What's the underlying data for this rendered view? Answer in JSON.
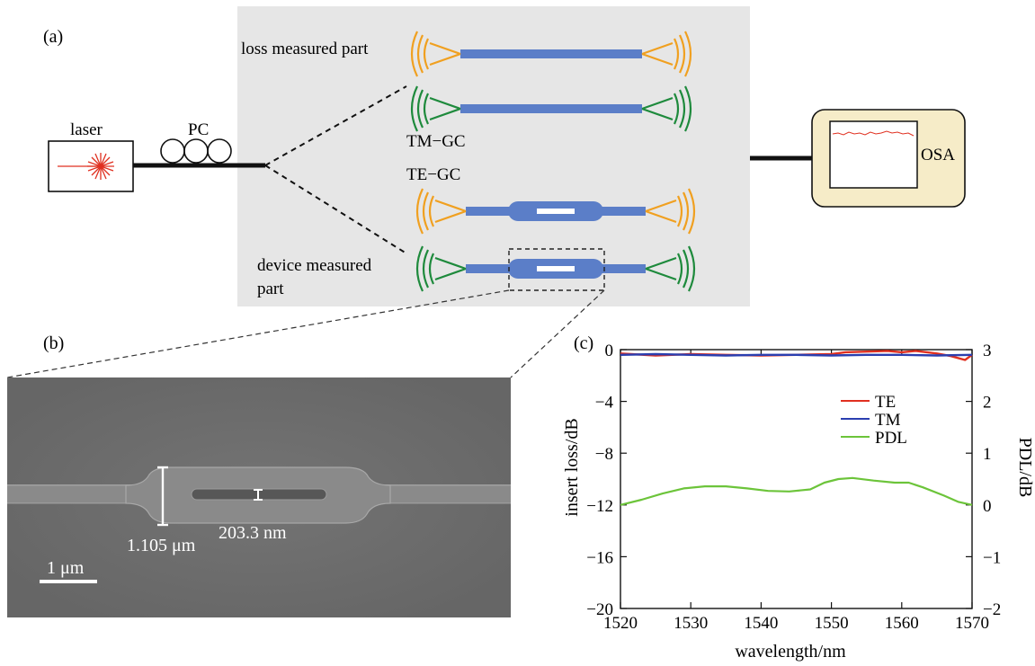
{
  "panel_a": {
    "label": "(a)",
    "laser_label": "laser",
    "pc_label": "PC",
    "loss_label": "loss measured part",
    "tm_gc_label": "TM−GC",
    "te_gc_label": "TE−GC",
    "device_label_line1": "device measured",
    "device_label_line2": "part",
    "osa_label": "OSA"
  },
  "panel_b": {
    "label": "(b)",
    "width_label": "1.105 μm",
    "gap_label": "203.3 nm",
    "scale_label": "1 μm"
  },
  "panel_c": {
    "label": "(c)"
  },
  "colors": {
    "te_gc": "#f0a020",
    "tm_gc": "#1e8a3c",
    "waveguide": "#5b7ec8",
    "grey_panel": "#e6e6e6",
    "osa_box": "#f6ecc8",
    "sem_bg": "#6e6e6e",
    "te": "#e03020",
    "tm": "#2b3fb0",
    "pdl": "#6cc43a"
  },
  "chart_data": {
    "type": "line",
    "xlabel": "wavelength/nm",
    "ylabel": "insert loss/dB",
    "y2label": "PDL/dB",
    "xlim": [
      1520,
      1570
    ],
    "ylim": [
      -20,
      0
    ],
    "y2lim": [
      -2,
      3
    ],
    "xticks": [
      "1520",
      "1530",
      "1540",
      "1550",
      "1560",
      "1570"
    ],
    "yticks": [
      "0",
      "−4",
      "−8",
      "−12",
      "−16",
      "−20"
    ],
    "y2ticks": [
      "3",
      "2",
      "1",
      "0",
      "−1",
      "−2"
    ],
    "legend_position": "right-middle",
    "grid": false,
    "series": [
      {
        "name": "TE",
        "axis": "left",
        "x": [
          1520,
          1525,
          1530,
          1535,
          1540,
          1545,
          1550,
          1552,
          1555,
          1558,
          1560,
          1562,
          1565,
          1567,
          1569,
          1570
        ],
        "y": [
          -0.3,
          -0.45,
          -0.35,
          -0.4,
          -0.45,
          -0.4,
          -0.35,
          -0.2,
          -0.15,
          -0.1,
          -0.2,
          -0.1,
          -0.3,
          -0.5,
          -0.8,
          -0.4
        ]
      },
      {
        "name": "TM",
        "axis": "left",
        "x": [
          1520,
          1525,
          1530,
          1535,
          1540,
          1545,
          1550,
          1555,
          1560,
          1565,
          1570
        ],
        "y": [
          -0.4,
          -0.35,
          -0.4,
          -0.45,
          -0.4,
          -0.4,
          -0.45,
          -0.4,
          -0.4,
          -0.45,
          -0.4
        ]
      },
      {
        "name": "PDL",
        "axis": "right",
        "x": [
          1520,
          1523,
          1526,
          1529,
          1532,
          1535,
          1538,
          1541,
          1544,
          1547,
          1549,
          1551,
          1553,
          1556,
          1559,
          1561,
          1563,
          1566,
          1568,
          1570
        ],
        "y": [
          0.0,
          0.1,
          0.22,
          0.32,
          0.36,
          0.36,
          0.32,
          0.27,
          0.26,
          0.3,
          0.43,
          0.5,
          0.52,
          0.47,
          0.43,
          0.43,
          0.34,
          0.18,
          0.06,
          0.0
        ]
      }
    ]
  }
}
